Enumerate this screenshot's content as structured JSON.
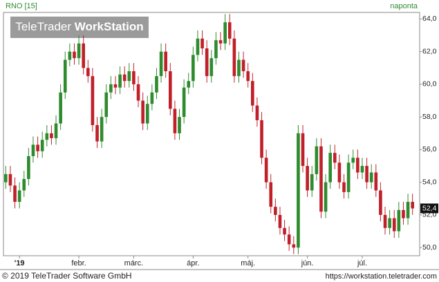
{
  "chart_data": {
    "type": "candlestick",
    "title": "RNO [15]",
    "period": "naponta",
    "watermark": {
      "brand": "TeleTrader",
      "product": "WorkStation"
    },
    "footer": {
      "copyright": "© 2019 TeleTrader Software GmbH",
      "url": "https://workstation.teletrader.com"
    },
    "up_color": "#2e8b2e",
    "down_color": "#c0202a",
    "ylim": [
      49.5,
      64.4
    ],
    "yticks": [
      {
        "value": 50,
        "label": "50,0"
      },
      {
        "value": 52,
        "label": "52,0"
      },
      {
        "value": 54,
        "label": "54,0"
      },
      {
        "value": 56,
        "label": "56,0"
      },
      {
        "value": 58,
        "label": "58,0"
      },
      {
        "value": 60,
        "label": "60,0"
      },
      {
        "value": 62,
        "label": "62,0"
      },
      {
        "value": 64,
        "label": "64,0"
      }
    ],
    "last_value": {
      "value": 52.4,
      "label": "52,4"
    },
    "categories": [
      null,
      null,
      null,
      "'19",
      null,
      null,
      null,
      null,
      null,
      null,
      null,
      null,
      null,
      null,
      null,
      null,
      "febr.",
      null,
      null,
      null,
      null,
      null,
      null,
      null,
      null,
      null,
      null,
      null,
      "márc.",
      null,
      null,
      null,
      null,
      null,
      null,
      null,
      null,
      null,
      null,
      null,
      null,
      "ápr.",
      null,
      null,
      null,
      null,
      null,
      null,
      null,
      null,
      null,
      null,
      null,
      "máj.",
      null,
      null,
      null,
      null,
      null,
      null,
      null,
      null,
      null,
      null,
      null,
      null,
      "jún.",
      null,
      null,
      null,
      null,
      null,
      null,
      null,
      null,
      null,
      null,
      null,
      "júl.",
      null,
      null,
      null,
      null,
      null,
      null,
      null,
      null,
      null,
      null,
      null
    ],
    "open": [
      54.0,
      54.5,
      53.8,
      52.8,
      53.5,
      54.2,
      55.6,
      56.3,
      55.9,
      56.6,
      57.0,
      56.7,
      57.6,
      59.5,
      61.5,
      62.0,
      61.6,
      62.5,
      61.0,
      60.5,
      57.5,
      56.5,
      58.0,
      59.5,
      60.0,
      59.8,
      60.6,
      60.2,
      60.8,
      60.0,
      59.0,
      57.6,
      58.8,
      59.5,
      60.5,
      62.0,
      60.8,
      58.5,
      57.0,
      58.0,
      59.8,
      60.2,
      61.8,
      62.8,
      62.2,
      60.5,
      61.6,
      62.7,
      62.5,
      63.8,
      62.8,
      60.5,
      61.5,
      60.8,
      60.2,
      58.7,
      57.8,
      55.5,
      54.0,
      52.5,
      52.0,
      51.2,
      50.8,
      50.2,
      50.0,
      57.0,
      55.0,
      53.5,
      54.5,
      56.2,
      52.2,
      54.0,
      55.8,
      55.2,
      54.0,
      53.4,
      55.2,
      55.5,
      54.6,
      55.0,
      54.0,
      54.6,
      53.5,
      52.0,
      51.2,
      51.8,
      51.0,
      52.3,
      51.8,
      52.8
    ],
    "high": [
      55.0,
      55.0,
      54.3,
      54.0,
      54.7,
      56.1,
      56.8,
      56.8,
      57.1,
      57.5,
      57.5,
      58.1,
      60.0,
      62.0,
      62.5,
      62.5,
      63.0,
      63.0,
      61.5,
      61.0,
      58.0,
      58.5,
      60.0,
      60.5,
      60.5,
      61.1,
      61.1,
      61.3,
      61.3,
      60.5,
      59.5,
      59.3,
      60.0,
      61.0,
      62.5,
      62.5,
      61.3,
      59.0,
      58.5,
      60.3,
      60.7,
      62.3,
      63.3,
      63.3,
      62.7,
      62.1,
      63.2,
      63.2,
      64.3,
      64.3,
      63.3,
      62.0,
      62.0,
      61.3,
      60.7,
      59.2,
      58.3,
      56.0,
      54.5,
      53.0,
      52.5,
      51.7,
      51.3,
      50.7,
      57.5,
      57.5,
      55.5,
      55.0,
      56.7,
      56.7,
      54.5,
      56.3,
      56.3,
      55.7,
      54.5,
      55.7,
      56.0,
      56.0,
      55.5,
      55.5,
      55.1,
      55.1,
      54.0,
      52.5,
      52.3,
      52.3,
      52.8,
      52.8,
      53.3,
      53.3
    ],
    "low": [
      53.6,
      53.4,
      52.4,
      52.4,
      53.1,
      53.8,
      55.2,
      55.5,
      55.5,
      56.2,
      56.3,
      56.3,
      57.2,
      59.1,
      61.1,
      61.2,
      61.2,
      60.6,
      60.1,
      57.1,
      56.1,
      56.1,
      57.6,
      59.1,
      59.4,
      59.4,
      59.8,
      59.8,
      59.6,
      58.6,
      57.2,
      57.2,
      58.4,
      59.1,
      60.1,
      60.4,
      58.1,
      56.6,
      56.6,
      57.6,
      59.4,
      59.8,
      61.4,
      61.8,
      60.1,
      60.1,
      61.2,
      62.1,
      62.1,
      62.4,
      60.1,
      60.1,
      60.4,
      59.8,
      58.3,
      57.4,
      55.1,
      53.6,
      52.1,
      51.6,
      50.8,
      50.4,
      49.8,
      49.6,
      49.6,
      54.6,
      53.1,
      53.1,
      54.1,
      51.8,
      51.8,
      53.6,
      54.8,
      53.6,
      53.0,
      53.0,
      54.8,
      54.2,
      54.2,
      53.6,
      53.6,
      53.1,
      51.6,
      50.8,
      50.8,
      50.6,
      50.6,
      51.4,
      51.4,
      52.0
    ],
    "close": [
      54.5,
      53.8,
      52.8,
      53.5,
      54.2,
      55.6,
      56.3,
      55.9,
      56.6,
      57.0,
      56.7,
      57.6,
      59.5,
      61.5,
      62.0,
      61.6,
      62.5,
      61.0,
      60.5,
      57.5,
      56.5,
      58.0,
      59.5,
      60.0,
      59.8,
      60.6,
      60.2,
      60.8,
      60.0,
      59.0,
      57.6,
      58.8,
      59.5,
      60.5,
      62.0,
      60.8,
      58.5,
      57.0,
      58.0,
      59.8,
      60.2,
      61.8,
      62.8,
      62.2,
      60.5,
      61.6,
      62.7,
      62.5,
      63.8,
      62.8,
      60.5,
      61.5,
      60.8,
      60.2,
      58.7,
      57.8,
      55.5,
      54.0,
      52.5,
      52.0,
      51.2,
      50.8,
      50.2,
      50.0,
      57.0,
      55.0,
      53.5,
      54.5,
      56.2,
      52.2,
      54.0,
      55.8,
      55.2,
      54.0,
      53.4,
      55.2,
      55.5,
      54.6,
      55.0,
      54.0,
      54.6,
      53.5,
      52.0,
      51.2,
      51.8,
      51.0,
      52.3,
      51.8,
      52.8,
      52.4
    ]
  }
}
